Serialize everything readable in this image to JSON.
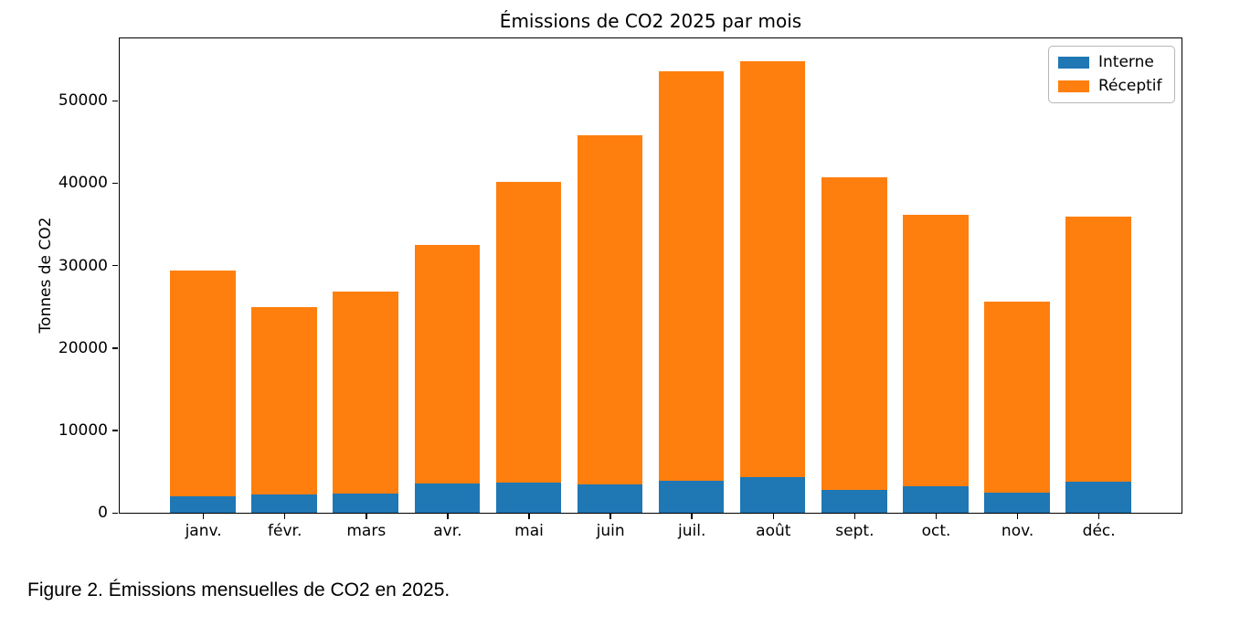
{
  "figure": {
    "caption": "Figure 2. Émissions mensuelles de CO2 en 2025."
  },
  "chart_data": {
    "type": "bar",
    "stacked": true,
    "title": "Émissions de CO2 2025 par mois",
    "xlabel": "",
    "ylabel": "Tonnes de CO2",
    "categories": [
      "janv.",
      "févr.",
      "mars",
      "avr.",
      "mai",
      "juin",
      "juil.",
      "août",
      "sept.",
      "oct.",
      "nov.",
      "déc."
    ],
    "series": [
      {
        "name": "Interne",
        "color": "#1f77b4",
        "values": [
          2000,
          2200,
          2300,
          3500,
          3700,
          3400,
          3900,
          4300,
          2800,
          3200,
          2400,
          3800
        ]
      },
      {
        "name": "Réceptif",
        "color": "#ff7f0e",
        "values": [
          27400,
          22800,
          24500,
          29000,
          36400,
          42400,
          49700,
          50500,
          37900,
          32900,
          23200,
          32100
        ]
      }
    ],
    "totals": [
      29400,
      25000,
      26800,
      32500,
      40100,
      45800,
      53600,
      54800,
      40700,
      36100,
      25600,
      35900
    ],
    "ylim": [
      0,
      57600
    ],
    "yticks": [
      0,
      10000,
      20000,
      30000,
      40000,
      50000
    ],
    "grid": false,
    "legend_position": "upper right",
    "colors": {
      "interne": "#1f77b4",
      "receptif": "#ff7f0e",
      "spine": "#000000"
    }
  }
}
